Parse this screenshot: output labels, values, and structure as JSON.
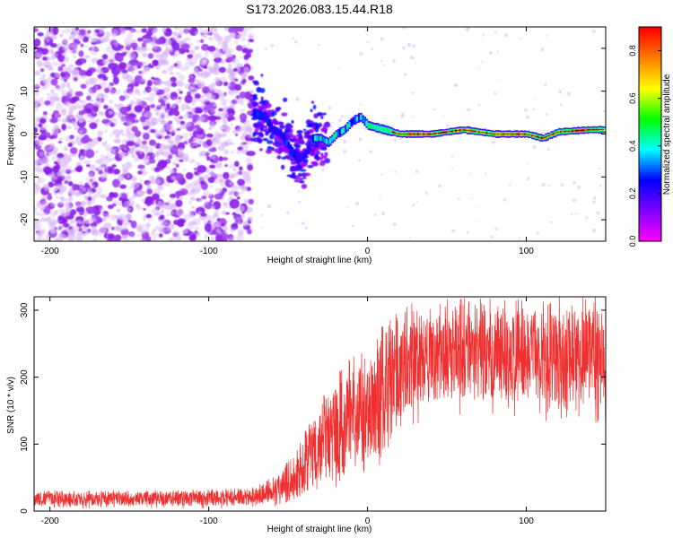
{
  "figure_title": "S173.2026.083.15.44.R18",
  "chart_data": [
    {
      "type": "heatmap",
      "title": "S173.2026.083.15.44.R18",
      "xlabel": "Height of straight line (km)",
      "ylabel": "Frequency (Hz)",
      "xlim": [
        -210,
        150
      ],
      "ylim": [
        -25,
        25
      ],
      "xticks": [
        -200,
        -100,
        0,
        100
      ],
      "yticks": [
        -20,
        -10,
        0,
        10,
        20
      ],
      "grid": false,
      "colorbar": {
        "label": "Normalized spectral amplitude",
        "range": [
          0.0,
          0.9
        ],
        "ticks": [
          0.0,
          0.2,
          0.4,
          0.6,
          0.8
        ],
        "colormap": [
          "#ff00ff",
          "#7f00ff",
          "#0000ff",
          "#00ffff",
          "#00ff00",
          "#ffff00",
          "#ff7f00",
          "#ff0000"
        ]
      },
      "regions": [
        {
          "name": "noise",
          "x_range": [
            -210,
            -73
          ],
          "freq_range": [
            -25,
            25
          ],
          "amplitude_range": [
            0.05,
            0.15
          ]
        },
        {
          "name": "onset",
          "x_range": [
            -73,
            -35
          ],
          "freq_center_start": 5,
          "freq_center_end": -8,
          "amplitude_range": [
            0.1,
            0.4
          ]
        },
        {
          "name": "transition",
          "x_range": [
            -35,
            15
          ],
          "freq_center_start": -2,
          "freq_center_end": 3,
          "amplitude_range": [
            0.2,
            0.6
          ]
        },
        {
          "name": "carrier",
          "x_range": [
            15,
            150
          ],
          "freq_center": 0,
          "amplitude_range": [
            0.5,
            0.9
          ]
        }
      ],
      "band_path": [
        [
          -73,
          5.0
        ],
        [
          -65,
          4.0
        ],
        [
          -60,
          1.0
        ],
        [
          -55,
          0.0
        ],
        [
          -50,
          -3.0
        ],
        [
          -45,
          -6.0
        ],
        [
          -40,
          -5.0
        ],
        [
          -35,
          -1.0
        ],
        [
          -30,
          -1.0
        ],
        [
          -25,
          -2.0
        ],
        [
          -20,
          0.0
        ],
        [
          -15,
          1.0
        ],
        [
          -10,
          3.0
        ],
        [
          -5,
          4.0
        ],
        [
          0,
          2.0
        ],
        [
          10,
          1.0
        ],
        [
          20,
          0.0
        ],
        [
          40,
          0.0
        ],
        [
          60,
          1.0
        ],
        [
          80,
          0.0
        ],
        [
          100,
          0.0
        ],
        [
          110,
          -1.0
        ],
        [
          120,
          0.5
        ],
        [
          140,
          1.0
        ],
        [
          150,
          1.0
        ]
      ]
    },
    {
      "type": "line",
      "title": "",
      "xlabel": "Height of straight line (km)",
      "ylabel": "SNR (10 * v/v)",
      "xlim": [
        -210,
        150
      ],
      "ylim": [
        0,
        320
      ],
      "xticks": [
        -200,
        -100,
        0,
        100
      ],
      "yticks": [
        0,
        100,
        200,
        300
      ],
      "grid": false,
      "series": [
        {
          "name": "SNR",
          "color": "#f03030",
          "envelope": {
            "x": [
              -210,
              -150,
              -100,
              -75,
              -65,
              -55,
              -45,
              -35,
              -25,
              -15,
              -5,
              5,
              15,
              30,
              50,
              75,
              100,
              125,
              150
            ],
            "baseline": [
              18,
              18,
              19,
              20,
              26,
              34,
              50,
              80,
              105,
              125,
              140,
              165,
              205,
              225,
              235,
              235,
              230,
              230,
              230
            ],
            "spread": [
              10,
              10,
              11,
              11,
              14,
              20,
              32,
              48,
              62,
              72,
              78,
              82,
              72,
              68,
              65,
              65,
              68,
              70,
              70
            ]
          }
        }
      ]
    }
  ]
}
